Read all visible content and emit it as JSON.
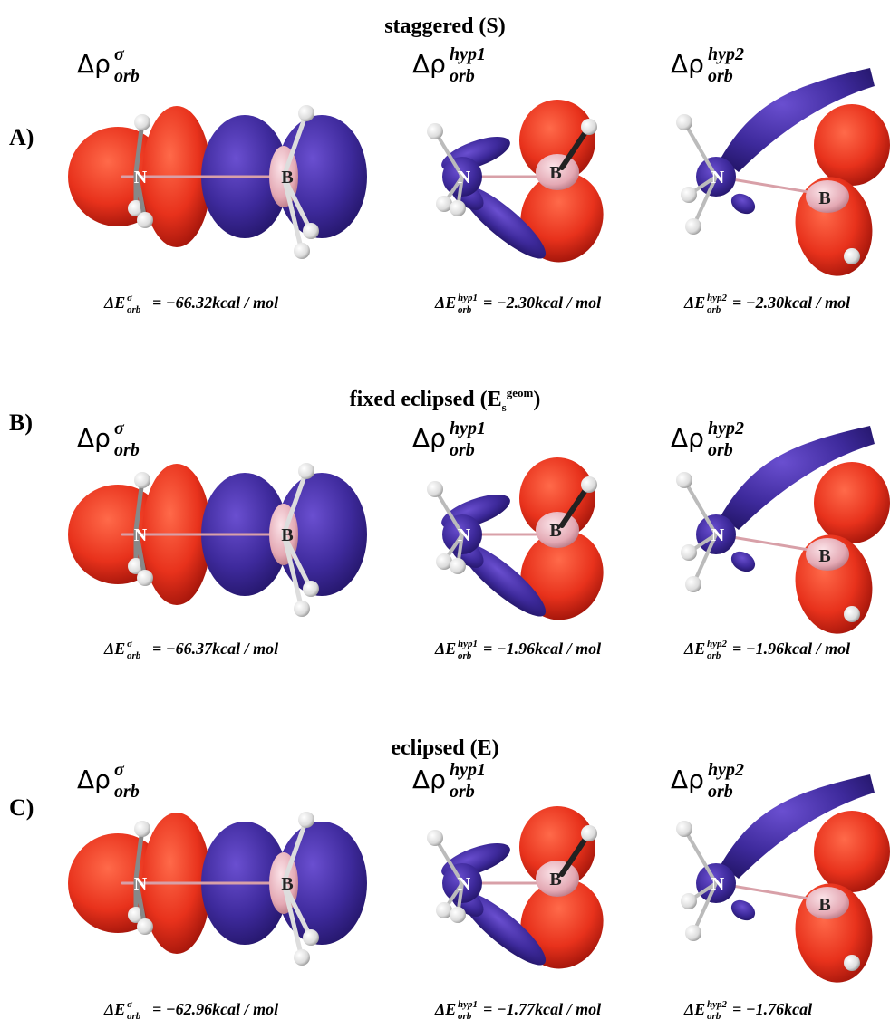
{
  "rows": [
    {
      "label": "A)",
      "title": {
        "text": "staggered (S)"
      },
      "panels": [
        {
          "symbol": "Δρ",
          "sup": "σ",
          "sub": "orb",
          "atoms": [
            "N",
            "B"
          ],
          "energy": {
            "symbol": "ΔE",
            "sup": "σ",
            "sub": "orb",
            "value": "= −66.32kcal / mol"
          }
        },
        {
          "symbol": "Δρ",
          "sup": "hyp1",
          "sub": "orb",
          "atoms": [
            "N",
            "B"
          ],
          "energy": {
            "symbol": "ΔE",
            "sup": "hyp1",
            "sub": "orb",
            "value": "= −2.30kcal / mol"
          }
        },
        {
          "symbol": "Δρ",
          "sup": "hyp2",
          "sub": "orb",
          "atoms": [
            "N",
            "B"
          ],
          "energy": {
            "symbol": "ΔE",
            "sup": "hyp2",
            "sub": "orb",
            "value": "= −2.30kcal / mol"
          }
        }
      ]
    },
    {
      "label": "B)",
      "title": {
        "text": "fixed eclipsed (E",
        "sub": "s",
        "sup": "geom",
        "close": ")"
      },
      "panels": [
        {
          "symbol": "Δρ",
          "sup": "σ",
          "sub": "orb",
          "atoms": [
            "N",
            "B"
          ],
          "energy": {
            "symbol": "ΔE",
            "sup": "σ",
            "sub": "orb",
            "value": "= −66.37kcal / mol"
          }
        },
        {
          "symbol": "Δρ",
          "sup": "hyp1",
          "sub": "orb",
          "atoms": [
            "N",
            "B"
          ],
          "energy": {
            "symbol": "ΔE",
            "sup": "hyp1",
            "sub": "orb",
            "value": "= −1.96kcal / mol"
          }
        },
        {
          "symbol": "Δρ",
          "sup": "hyp2",
          "sub": "orb",
          "atoms": [
            "N",
            "B"
          ],
          "energy": {
            "symbol": "ΔE",
            "sup": "hyp2",
            "sub": "orb",
            "value": "= −1.96kcal / mol"
          }
        }
      ]
    },
    {
      "label": "C)",
      "title": {
        "text": "eclipsed (E)"
      },
      "panels": [
        {
          "symbol": "Δρ",
          "sup": "σ",
          "sub": "orb",
          "atoms": [
            "N",
            "B"
          ],
          "energy": {
            "symbol": "ΔE",
            "sup": "σ",
            "sub": "orb",
            "value": "= −62.96kcal / mol"
          }
        },
        {
          "symbol": "Δρ",
          "sup": "hyp1",
          "sub": "orb",
          "atoms": [
            "N",
            "B"
          ],
          "energy": {
            "symbol": "ΔE",
            "sup": "hyp1",
            "sub": "orb",
            "value": "= −1.77kcal / mol"
          }
        },
        {
          "symbol": "Δρ",
          "sup": "hyp2",
          "sub": "orb",
          "atoms": [
            "N",
            "B"
          ],
          "energy": {
            "symbol": "ΔE",
            "sup": "hyp2",
            "sub": "orb",
            "value": "= −1.76kcal"
          }
        }
      ]
    }
  ]
}
